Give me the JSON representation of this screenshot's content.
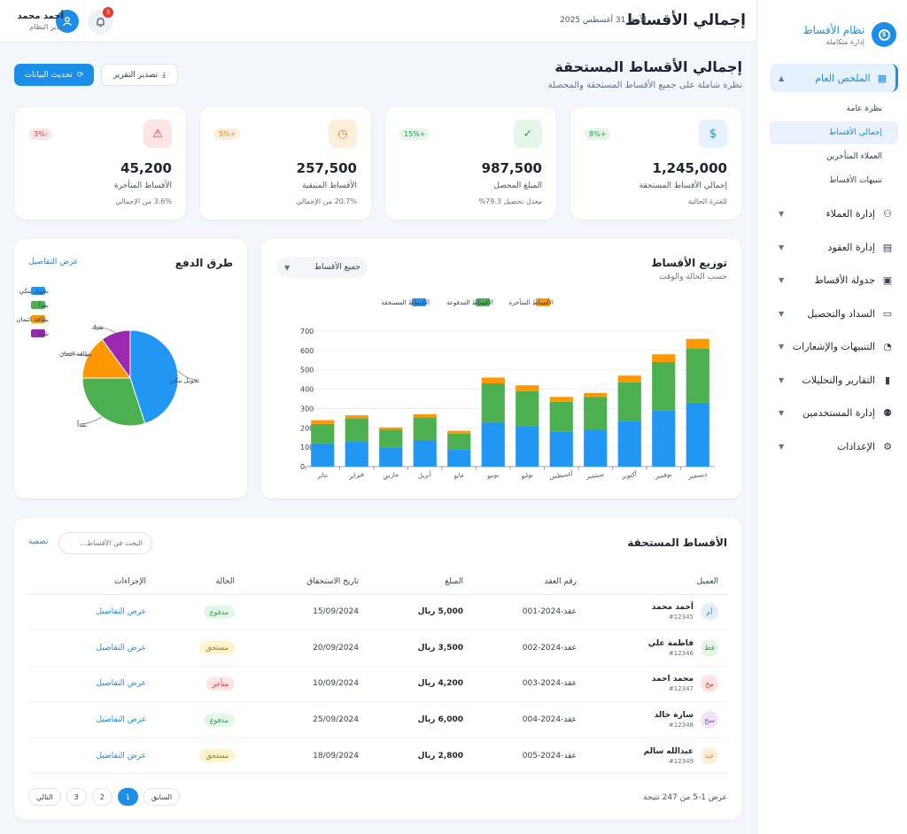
{
  "sidebar": {
    "brand": {
      "title": "نظام الأقساط",
      "subtitle": "إدارة متكاملة"
    },
    "active_section": "الملخص العام",
    "sub_items": [
      "نظرة عامة",
      "إجمالي الأقساط",
      "العملاء المتأخرين",
      "تنبيهات الأقساط"
    ],
    "active_sub": "إجمالي الأقساط",
    "items": [
      {
        "label": "إدارة العملاء",
        "icon": "user-icon"
      },
      {
        "label": "إدارة العقود",
        "icon": "document-icon"
      },
      {
        "label": "جدولة الأقساط",
        "icon": "calendar-icon"
      },
      {
        "label": "السداد والتحصيل",
        "icon": "wallet-icon"
      },
      {
        "label": "التنبيهات والإشعارات",
        "icon": "bell-icon"
      },
      {
        "label": "التقارير والتحليلات",
        "icon": "bar-chart-icon"
      },
      {
        "label": "إدارة المستخدمين",
        "icon": "users-icon"
      },
      {
        "label": "الإعدادات",
        "icon": "gear-icon"
      }
    ]
  },
  "topbar": {
    "title": "إجمالي الأقساط",
    "date": "الأحد، 31 أغسطس 2025",
    "user_name": "أحمد محمد",
    "user_role": "مدير النظام",
    "notifications": "3"
  },
  "page": {
    "title": "إجمالي الأقساط المستحقة",
    "subtitle": "نظرة شاملة على جميع الأقساط المستحقة والمحصلة",
    "refresh_label": "تحديث البيانات",
    "export_label": "تصدير التقرير"
  },
  "kpis": [
    {
      "value": "1,245,000",
      "label": "إجمالي الأقساط المستحقة",
      "sub": "للفترة الحالية",
      "change": "+8%",
      "icon": "dollar-coin-icon",
      "color": "#1a8ee8",
      "bg": "#e5f1fd",
      "chg_bg": "#e3f6e8",
      "chg_color": "#2e9e4f"
    },
    {
      "value": "987,500",
      "label": "المبلغ المحصل",
      "sub": "معدل تحصيل 79.3%",
      "change": "+15%",
      "icon": "check-icon",
      "color": "#2e9e4f",
      "bg": "#e3f6e8",
      "chg_bg": "#e3f6e8",
      "chg_color": "#2e9e4f"
    },
    {
      "value": "257,500",
      "label": "الأقساط المتبقية",
      "sub": "20.7% من الإجمالي",
      "change": "+5%",
      "icon": "clock-icon",
      "color": "#f0891a",
      "bg": "#fdefdc",
      "chg_bg": "#fdefdc",
      "chg_color": "#f0891a"
    },
    {
      "value": "45,200",
      "label": "الأقساط المتأخرة",
      "sub": "3.6% من الإجمالي",
      "change": "-3%",
      "icon": "warning-icon",
      "color": "#e53935",
      "bg": "#fde5e5",
      "chg_bg": "#fde5e5",
      "chg_color": "#e53935"
    }
  ],
  "distribution": {
    "title": "توزيع الأقساط",
    "subtitle": "حسب الحالة والوقت",
    "filter": "جميع الأقساط"
  },
  "payments": {
    "title": "طرق الدفع",
    "link": "عرض التفاصيل"
  },
  "chart_data": [
    {
      "type": "bar",
      "stacked": true,
      "categories": [
        "يناير",
        "فبراير",
        "مارس",
        "أبريل",
        "مايو",
        "يونيو",
        "يوليو",
        "أغسطس",
        "سبتمبر",
        "أكتوبر",
        "نوفمبر",
        "ديسمبر"
      ],
      "series": [
        {
          "name": "الأقساط المستحقة",
          "color": "#2196f3",
          "values": [
            120,
            130,
            100,
            135,
            90,
            230,
            210,
            180,
            190,
            235,
            290,
            330
          ]
        },
        {
          "name": "الأقساط المدفوعة",
          "color": "#4caf50",
          "values": [
            100,
            120,
            90,
            120,
            80,
            200,
            180,
            155,
            170,
            200,
            250,
            280
          ]
        },
        {
          "name": "الأقساط المتأخرة",
          "color": "#ff9800",
          "values": [
            20,
            15,
            12,
            15,
            15,
            30,
            30,
            25,
            20,
            35,
            40,
            50
          ]
        }
      ],
      "yticks": [
        0,
        100,
        200,
        300,
        400,
        500,
        600,
        700
      ],
      "ylim": [
        0,
        700
      ],
      "grid": true,
      "legend": "top"
    },
    {
      "type": "pie",
      "slices": [
        {
          "name": "تحويل بنكي",
          "value": 45,
          "color": "#2196f3"
        },
        {
          "name": "نقداً",
          "value": 30,
          "color": "#4caf50"
        },
        {
          "name": "بطاقة ائتمان",
          "value": 15,
          "color": "#ff9800"
        },
        {
          "name": "شيك",
          "value": 10,
          "color": "#9c27b0"
        }
      ],
      "legend": "top-left"
    }
  ],
  "table": {
    "title": "الأقساط المستحقة",
    "search_placeholder": "البحث في الأقساط...",
    "filter_label": "تصفية",
    "headers": [
      "العميل",
      "رقم العقد",
      "المبلغ",
      "تاريخ الاستحقاق",
      "الحالة",
      "الإجراءات"
    ],
    "rows": [
      {
        "initials": "أم",
        "name": "أحمد محمد",
        "id": "#12345",
        "contract": "عقد-2024-001",
        "amount": "5,000 ريال",
        "date": "15/09/2024",
        "status": "مدفوع",
        "action": "عرض التفاصيل",
        "av_bg": "#e3effc",
        "av_color": "#1a8ee8",
        "st_bg": "#e3f6e8",
        "st_color": "#2e9e4f"
      },
      {
        "initials": "فط",
        "name": "فاطمة علي",
        "id": "#12346",
        "contract": "عقد-2024-002",
        "amount": "3,500 ريال",
        "date": "20/09/2024",
        "status": "مستحق",
        "action": "عرض التفاصيل",
        "av_bg": "#e3f6e8",
        "av_color": "#2e9e4f",
        "st_bg": "#fdf3cf",
        "st_color": "#a87a00"
      },
      {
        "initials": "مح",
        "name": "محمد احمد",
        "id": "#12347",
        "contract": "عقد-2024-003",
        "amount": "4,200 ريال",
        "date": "10/09/2024",
        "status": "متأخر",
        "action": "عرض التفاصيل",
        "av_bg": "#fde5e5",
        "av_color": "#e53935",
        "st_bg": "#fde5e5",
        "st_color": "#e53935"
      },
      {
        "initials": "سخ",
        "name": "سارة خالد",
        "id": "#12348",
        "contract": "عقد-2024-004",
        "amount": "6,000 ريال",
        "date": "25/09/2024",
        "status": "مدفوع",
        "action": "عرض التفاصيل",
        "av_bg": "#f1e6fa",
        "av_color": "#8e44ad",
        "st_bg": "#e3f6e8",
        "st_color": "#2e9e4f"
      },
      {
        "initials": "عبد",
        "name": "عبدالله سالم",
        "id": "#12349",
        "contract": "عقد-2024-005",
        "amount": "2,800 ريال",
        "date": "18/09/2024",
        "status": "مستحق",
        "action": "عرض التفاصيل",
        "av_bg": "#fdefdc",
        "av_color": "#f0891a",
        "st_bg": "#fdf3cf",
        "st_color": "#a87a00"
      }
    ],
    "summary": "عرض 1-5 من 247 نتيجة",
    "pagination": {
      "prev": "السابق",
      "pages": [
        "1",
        "2",
        "3"
      ],
      "current": "1",
      "next": "التالي"
    }
  }
}
